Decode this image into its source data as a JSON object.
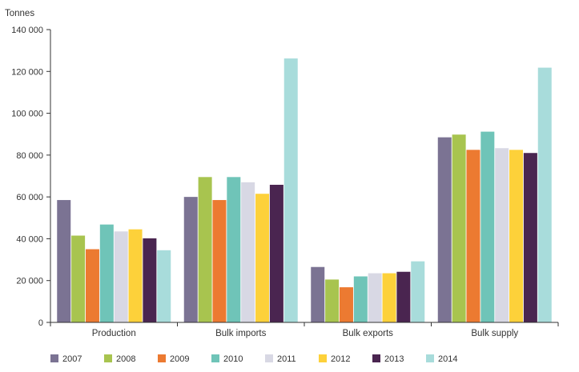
{
  "chart_data": {
    "type": "bar",
    "ylabel": "Tonnes",
    "ylim": [
      0,
      140000
    ],
    "yticks": [
      0,
      20000,
      40000,
      60000,
      80000,
      100000,
      120000,
      140000
    ],
    "ytick_labels": [
      "0",
      "20 000",
      "40 000",
      "60 000",
      "80 000",
      "100 000",
      "120 000",
      "140 000"
    ],
    "categories": [
      "Production",
      "Bulk imports",
      "Bulk exports",
      "Bulk supply"
    ],
    "series": [
      {
        "name": "2007",
        "color": "#7b7393",
        "values": [
          58500,
          60000,
          26500,
          88500
        ]
      },
      {
        "name": "2008",
        "color": "#a8c44f",
        "values": [
          41500,
          69500,
          20500,
          89800
        ]
      },
      {
        "name": "2009",
        "color": "#ec7a31",
        "values": [
          35000,
          58500,
          16800,
          82500
        ]
      },
      {
        "name": "2010",
        "color": "#6fc4b8",
        "values": [
          46800,
          69500,
          22000,
          91200
        ]
      },
      {
        "name": "2011",
        "color": "#d8d8e4",
        "values": [
          43500,
          67000,
          23500,
          83300
        ]
      },
      {
        "name": "2012",
        "color": "#fdd13a",
        "values": [
          44500,
          61500,
          23500,
          82500
        ]
      },
      {
        "name": "2013",
        "color": "#4a2550",
        "values": [
          40200,
          65800,
          24200,
          81000
        ]
      },
      {
        "name": "2014",
        "color": "#a8dcdb",
        "values": [
          34500,
          126200,
          29200,
          121800
        ]
      }
    ],
    "grid": false,
    "legend_position": "bottom"
  }
}
